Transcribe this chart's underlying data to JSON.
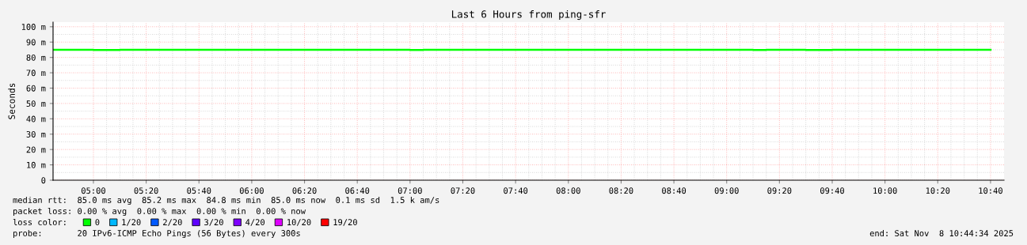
{
  "chart_data": {
    "type": "step",
    "title": "Last 6 Hours from ping-sfr",
    "ylabel": "Seconds",
    "x": [
      4.75,
      5.0,
      5.1667,
      7.0,
      7.0833,
      9.1667,
      9.25,
      9.5,
      9.6667,
      10.6667
    ],
    "series": [
      {
        "name": "0",
        "color": "#00ff00",
        "values": [
          85,
          84.8,
          85,
          84.8,
          85,
          84.8,
          85,
          84.8,
          85,
          85
        ]
      },
      {
        "name": "1/20",
        "color": "#00b8ff",
        "values": [
          null,
          null,
          null,
          null,
          null,
          null,
          null,
          null,
          null,
          null
        ]
      },
      {
        "name": "2/20",
        "color": "#0059ff",
        "values": [
          null,
          null,
          null,
          null,
          null,
          null,
          null,
          null,
          null,
          null
        ]
      },
      {
        "name": "3/20",
        "color": "#5e00ff",
        "values": [
          null,
          null,
          null,
          null,
          null,
          null,
          null,
          null,
          null,
          null
        ]
      },
      {
        "name": "4/20",
        "color": "#7e00ff",
        "values": [
          null,
          null,
          null,
          null,
          null,
          null,
          null,
          null,
          null,
          null
        ]
      },
      {
        "name": "10/20",
        "color": "#dd00ff",
        "values": [
          null,
          null,
          null,
          null,
          null,
          null,
          null,
          null,
          null,
          null
        ]
      },
      {
        "name": "19/20",
        "color": "#ff0000",
        "values": [
          null,
          null,
          null,
          null,
          null,
          null,
          null,
          null,
          null,
          null
        ]
      }
    ],
    "legend_title": "loss color:",
    "legend": "bottom",
    "xlim": [
      4.745,
      10.752
    ],
    "xticks": [
      {
        "value": 5.0,
        "label": "05:00"
      },
      {
        "value": 5.3333,
        "label": "05:20"
      },
      {
        "value": 5.6667,
        "label": "05:40"
      },
      {
        "value": 6.0,
        "label": "06:00"
      },
      {
        "value": 6.3333,
        "label": "06:20"
      },
      {
        "value": 6.6667,
        "label": "06:40"
      },
      {
        "value": 7.0,
        "label": "07:00"
      },
      {
        "value": 7.3333,
        "label": "07:20"
      },
      {
        "value": 7.6667,
        "label": "07:40"
      },
      {
        "value": 8.0,
        "label": "08:00"
      },
      {
        "value": 8.3333,
        "label": "08:20"
      },
      {
        "value": 8.6667,
        "label": "08:40"
      },
      {
        "value": 9.0,
        "label": "09:00"
      },
      {
        "value": 9.3333,
        "label": "09:20"
      },
      {
        "value": 9.6667,
        "label": "09:40"
      },
      {
        "value": 10.0,
        "label": "10:00"
      },
      {
        "value": 10.3333,
        "label": "10:20"
      },
      {
        "value": 10.6667,
        "label": "10:40"
      }
    ],
    "ylim": [
      0,
      103
    ],
    "yticks": [
      0,
      {
        "value": 10,
        "label": "10 m"
      },
      {
        "value": 20,
        "label": "20 m"
      },
      {
        "value": 30,
        "label": "30 m"
      },
      {
        "value": 40,
        "label": "40 m"
      },
      {
        "value": 50,
        "label": "50 m"
      },
      {
        "value": 60,
        "label": "60 m"
      },
      {
        "value": 70,
        "label": "70 m"
      },
      {
        "value": 80,
        "label": "80 m"
      },
      {
        "value": 90,
        "label": "90 m"
      },
      {
        "value": 100,
        "label": "100 m"
      }
    ],
    "grid": true,
    "annotations": [
      "median rtt:  85.0 ms avg  85.2 ms max  84.8 ms min  85.0 ms now  0.1 ms sd  1.5 k am/s",
      "packet loss: 0.00 % avg  0.00 % max  0.00 % min  0.00 % now",
      "probe:       20 IPv6-ICMP Echo Pings (56 Bytes) every 300s",
      "end: Sat Nov  8 10:44:34 2025"
    ]
  }
}
